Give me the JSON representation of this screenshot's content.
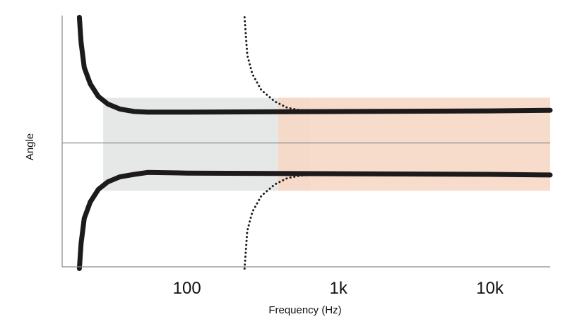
{
  "chart_data": {
    "type": "line",
    "title": "",
    "xlabel": "Frequency (Hz)",
    "ylabel": "Angle",
    "x_scale": "log",
    "xlim": [
      15,
      25000
    ],
    "ylim": [
      -1,
      1
    ],
    "x_ticks": [
      {
        "value": 100,
        "label": "100"
      },
      {
        "value": 1000,
        "label": "1k"
      },
      {
        "value": 10000,
        "label": "10k"
      }
    ],
    "grid": false,
    "zero_line": true,
    "bands": [
      {
        "x_start": 28,
        "x_end": 650,
        "y_start": -0.38,
        "y_end": 0.36,
        "color": "#e3e5e4"
      },
      {
        "x_start": 400,
        "x_end": 25000,
        "y_start": -0.38,
        "y_end": 0.36,
        "color": "#f6d7c5"
      }
    ],
    "series": [
      {
        "style": "solid",
        "color": "#1c1a1a",
        "upper": [
          [
            19.5,
            1.0
          ],
          [
            20,
            0.8
          ],
          [
            21,
            0.6
          ],
          [
            23,
            0.47
          ],
          [
            26,
            0.37
          ],
          [
            30,
            0.31
          ],
          [
            36,
            0.27
          ],
          [
            45,
            0.25
          ],
          [
            55,
            0.245
          ],
          [
            100,
            0.245
          ],
          [
            1000,
            0.25
          ],
          [
            10000,
            0.255
          ],
          [
            25000,
            0.26
          ]
        ],
        "lower": [
          [
            19.5,
            -1.0
          ],
          [
            20,
            -0.8
          ],
          [
            21,
            -0.6
          ],
          [
            23,
            -0.47
          ],
          [
            26,
            -0.37
          ],
          [
            30,
            -0.31
          ],
          [
            36,
            -0.27
          ],
          [
            45,
            -0.25
          ],
          [
            55,
            -0.235
          ],
          [
            100,
            -0.24
          ],
          [
            1000,
            -0.245
          ],
          [
            10000,
            -0.25
          ],
          [
            25000,
            -0.255
          ]
        ]
      },
      {
        "style": "dotted",
        "color": "#1c1a1a",
        "upper": [
          [
            240,
            1.0
          ],
          [
            250,
            0.7
          ],
          [
            270,
            0.55
          ],
          [
            310,
            0.42
          ],
          [
            380,
            0.33
          ],
          [
            460,
            0.28
          ],
          [
            560,
            0.26
          ],
          [
            650,
            0.255
          ]
        ],
        "lower": [
          [
            240,
            -1.0
          ],
          [
            250,
            -0.7
          ],
          [
            270,
            -0.55
          ],
          [
            310,
            -0.42
          ],
          [
            380,
            -0.33
          ],
          [
            460,
            -0.28
          ],
          [
            560,
            -0.26
          ],
          [
            650,
            -0.255
          ]
        ]
      }
    ]
  }
}
